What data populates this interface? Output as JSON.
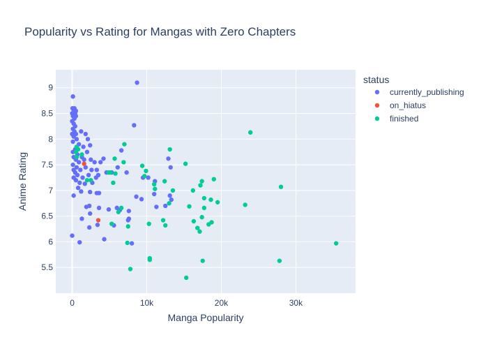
{
  "chart_data": {
    "type": "scatter",
    "title": "Popularity vs Rating for Mangas with Zero Chapters",
    "xlabel": "Manga Popularity",
    "ylabel": "Anime Rating",
    "xlim": [
      -2200,
      38000
    ],
    "ylim": [
      5.0,
      9.35
    ],
    "x_ticks": [
      0,
      10000,
      20000,
      30000
    ],
    "x_tick_labels": [
      "0",
      "10k",
      "20k",
      "30k"
    ],
    "y_ticks": [
      5.5,
      6,
      6.5,
      7,
      7.5,
      8,
      8.5,
      9
    ],
    "y_tick_labels": [
      "5.5",
      "6",
      "6.5",
      "7",
      "7.5",
      "8",
      "8.5",
      "9"
    ],
    "grid": true,
    "legend_position": "top-right",
    "legend_title": "status",
    "series": [
      {
        "name": "currently_publishing",
        "color": "#636efa",
        "points": [
          [
            100,
            8.83
          ],
          [
            50,
            8.6
          ],
          [
            300,
            8.6
          ],
          [
            500,
            8.55
          ],
          [
            200,
            8.55
          ],
          [
            0,
            8.5
          ],
          [
            400,
            8.5
          ],
          [
            100,
            8.45
          ],
          [
            300,
            8.4
          ],
          [
            500,
            8.45
          ],
          [
            0,
            8.35
          ],
          [
            200,
            8.3
          ],
          [
            400,
            8.25
          ],
          [
            100,
            8.2
          ],
          [
            300,
            8.15
          ],
          [
            0,
            8.1
          ],
          [
            500,
            8.1
          ],
          [
            1200,
            8.15
          ],
          [
            1800,
            8.1
          ],
          [
            2100,
            8.0
          ],
          [
            200,
            8.05
          ],
          [
            600,
            8.0
          ],
          [
            100,
            7.95
          ],
          [
            900,
            7.9
          ],
          [
            1500,
            7.85
          ],
          [
            2400,
            7.88
          ],
          [
            400,
            7.8
          ],
          [
            100,
            7.75
          ],
          [
            700,
            7.7
          ],
          [
            1300,
            7.65
          ],
          [
            2000,
            7.75
          ],
          [
            200,
            7.65
          ],
          [
            500,
            7.6
          ],
          [
            900,
            7.55
          ],
          [
            1600,
            7.6
          ],
          [
            2500,
            7.6
          ],
          [
            3000,
            7.55
          ],
          [
            100,
            7.5
          ],
          [
            600,
            7.45
          ],
          [
            1100,
            7.4
          ],
          [
            1800,
            7.45
          ],
          [
            2600,
            7.4
          ],
          [
            3300,
            7.4
          ],
          [
            3800,
            7.55
          ],
          [
            4200,
            7.62
          ],
          [
            200,
            7.4
          ],
          [
            400,
            7.35
          ],
          [
            700,
            7.3
          ],
          [
            1400,
            7.25
          ],
          [
            2200,
            7.3
          ],
          [
            3500,
            7.3
          ],
          [
            4600,
            7.35
          ],
          [
            5300,
            7.35
          ],
          [
            6100,
            7.45
          ],
          [
            6600,
            7.78
          ],
          [
            7300,
            7.35
          ],
          [
            200,
            7.25
          ],
          [
            500,
            7.2
          ],
          [
            1000,
            7.15
          ],
          [
            1700,
            7.13
          ],
          [
            2700,
            7.15
          ],
          [
            3200,
            7.25
          ],
          [
            800,
            7.05
          ],
          [
            1200,
            6.98
          ],
          [
            2400,
            6.97
          ],
          [
            3300,
            6.95
          ],
          [
            3600,
            6.95
          ],
          [
            200,
            6.9
          ],
          [
            8300,
            8.27
          ],
          [
            8700,
            9.1
          ],
          [
            9500,
            7.25
          ],
          [
            10200,
            7.25
          ],
          [
            11100,
            7.18
          ],
          [
            12900,
            7.62
          ],
          [
            13200,
            7.45
          ],
          [
            13100,
            6.9
          ],
          [
            13300,
            6.82
          ],
          [
            11000,
            6.93
          ],
          [
            9300,
            6.83
          ],
          [
            8600,
            6.88
          ],
          [
            12500,
            6.7
          ],
          [
            11300,
            6.68
          ],
          [
            2300,
            6.7
          ],
          [
            1900,
            6.68
          ],
          [
            1300,
            6.45
          ],
          [
            2400,
            6.55
          ],
          [
            3600,
            6.66
          ],
          [
            4900,
            6.63
          ],
          [
            6000,
            6.66
          ],
          [
            6400,
            6.62
          ],
          [
            7600,
            6.6
          ],
          [
            7600,
            6.45
          ],
          [
            7500,
            6.42
          ],
          [
            5600,
            6.32
          ],
          [
            3400,
            6.33
          ],
          [
            2300,
            6.28
          ],
          [
            4300,
            6.05
          ],
          [
            1000,
            5.99
          ],
          [
            0,
            6.12
          ],
          [
            8000,
            5.97
          ]
        ]
      },
      {
        "name": "on_hiatus",
        "color": "#ef553b",
        "points": [
          [
            1600,
            7.52
          ],
          [
            3500,
            6.42
          ]
        ]
      },
      {
        "name": "finished",
        "color": "#00cc96",
        "points": [
          [
            600,
            7.85
          ],
          [
            800,
            7.8
          ],
          [
            500,
            7.75
          ],
          [
            1300,
            7.7
          ],
          [
            600,
            7.65
          ],
          [
            5700,
            7.62
          ],
          [
            7000,
            7.9
          ],
          [
            6900,
            7.55
          ],
          [
            9400,
            7.48
          ],
          [
            9900,
            7.38
          ],
          [
            4900,
            7.35
          ],
          [
            5100,
            7.35
          ],
          [
            5800,
            7.33
          ],
          [
            9700,
            7.28
          ],
          [
            5500,
            7.15
          ],
          [
            2000,
            7.2
          ],
          [
            2500,
            7.2
          ],
          [
            12400,
            7.18
          ],
          [
            11000,
            7.12
          ],
          [
            11100,
            7.03
          ],
          [
            13100,
            7.8
          ],
          [
            15200,
            7.52
          ],
          [
            13500,
            7.0
          ],
          [
            16200,
            7.0
          ],
          [
            17200,
            7.1
          ],
          [
            17400,
            7.18
          ],
          [
            19000,
            7.22
          ],
          [
            23900,
            8.13
          ],
          [
            28000,
            7.07
          ],
          [
            17700,
            6.85
          ],
          [
            18600,
            6.82
          ],
          [
            19500,
            6.77
          ],
          [
            23200,
            6.72
          ],
          [
            13000,
            6.75
          ],
          [
            15700,
            6.69
          ],
          [
            17700,
            6.66
          ],
          [
            6600,
            6.66
          ],
          [
            6200,
            6.58
          ],
          [
            5300,
            6.35
          ],
          [
            12200,
            6.42
          ],
          [
            10300,
            6.35
          ],
          [
            12500,
            6.32
          ],
          [
            16300,
            6.4
          ],
          [
            16800,
            6.27
          ],
          [
            17100,
            6.2
          ],
          [
            17400,
            6.48
          ],
          [
            18300,
            6.34
          ],
          [
            18700,
            6.38
          ],
          [
            7500,
            6.3
          ],
          [
            7400,
            5.98
          ],
          [
            7800,
            5.47
          ],
          [
            10400,
            5.68
          ],
          [
            10400,
            5.65
          ],
          [
            15300,
            5.3
          ],
          [
            17500,
            5.63
          ],
          [
            27800,
            5.63
          ],
          [
            35400,
            5.97
          ]
        ]
      }
    ]
  }
}
